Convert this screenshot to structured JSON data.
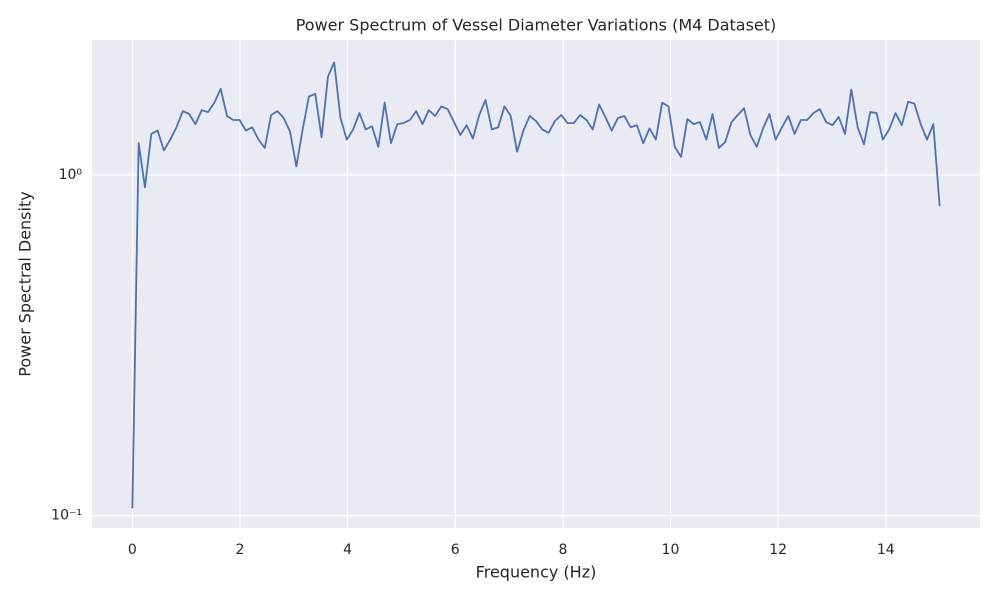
{
  "chart_data": {
    "type": "line",
    "title": "Power Spectrum of Vessel Diameter Variations (M4 Dataset)",
    "x_label": "Frequency (Hz)",
    "y_label": "Power Spectral Density",
    "yscale": "log",
    "grid": true,
    "xlim": [
      -0.75,
      15.75
    ],
    "ylim": [
      0.092,
      2.49
    ],
    "xticks": [
      0,
      2,
      4,
      6,
      8,
      10,
      12,
      14
    ],
    "yticks": [
      {
        "value": 0.1,
        "label": "10⁻¹"
      },
      {
        "value": 1,
        "label": "10⁰"
      }
    ],
    "x": [
      0,
      0.117,
      0.234,
      0.352,
      0.469,
      0.586,
      0.703,
      0.82,
      0.938,
      1.055,
      1.172,
      1.289,
      1.406,
      1.523,
      1.641,
      1.758,
      1.875,
      1.992,
      2.109,
      2.227,
      2.344,
      2.461,
      2.578,
      2.695,
      2.812,
      2.93,
      3.047,
      3.164,
      3.281,
      3.398,
      3.516,
      3.633,
      3.75,
      3.867,
      3.984,
      4.102,
      4.219,
      4.336,
      4.453,
      4.57,
      4.688,
      4.805,
      4.922,
      5.039,
      5.156,
      5.273,
      5.391,
      5.508,
      5.625,
      5.742,
      5.859,
      5.977,
      6.094,
      6.211,
      6.328,
      6.445,
      6.562,
      6.68,
      6.797,
      6.914,
      7.031,
      7.148,
      7.266,
      7.383,
      7.5,
      7.617,
      7.734,
      7.852,
      7.969,
      8.086,
      8.203,
      8.32,
      8.438,
      8.555,
      8.672,
      8.789,
      8.906,
      9.023,
      9.141,
      9.258,
      9.375,
      9.492,
      9.609,
      9.727,
      9.844,
      9.961,
      10.078,
      10.195,
      10.312,
      10.43,
      10.547,
      10.664,
      10.781,
      10.898,
      11.016,
      11.133,
      11.25,
      11.367,
      11.484,
      11.602,
      11.719,
      11.836,
      11.953,
      12.07,
      12.188,
      12.305,
      12.422,
      12.539,
      12.656,
      12.773,
      12.891,
      13.008,
      13.125,
      13.242,
      13.359,
      13.477,
      13.594,
      13.711,
      13.828,
      13.945,
      14.062,
      14.18,
      14.297,
      14.414,
      14.531,
      14.648,
      14.766,
      14.883,
      15.0
    ],
    "series": [
      {
        "color": "#4c72b0",
        "values": [
          0.105,
          1.24,
          0.92,
          1.32,
          1.35,
          1.18,
          1.27,
          1.38,
          1.54,
          1.51,
          1.41,
          1.55,
          1.53,
          1.63,
          1.79,
          1.49,
          1.45,
          1.45,
          1.35,
          1.38,
          1.27,
          1.2,
          1.5,
          1.54,
          1.47,
          1.34,
          1.06,
          1.36,
          1.7,
          1.73,
          1.29,
          1.94,
          2.14,
          1.47,
          1.27,
          1.36,
          1.52,
          1.36,
          1.39,
          1.21,
          1.63,
          1.24,
          1.41,
          1.42,
          1.45,
          1.54,
          1.41,
          1.55,
          1.49,
          1.59,
          1.56,
          1.43,
          1.31,
          1.4,
          1.28,
          1.5,
          1.66,
          1.36,
          1.38,
          1.59,
          1.49,
          1.17,
          1.35,
          1.49,
          1.44,
          1.36,
          1.33,
          1.44,
          1.5,
          1.42,
          1.42,
          1.5,
          1.45,
          1.36,
          1.61,
          1.48,
          1.35,
          1.47,
          1.49,
          1.38,
          1.4,
          1.24,
          1.37,
          1.27,
          1.63,
          1.59,
          1.21,
          1.13,
          1.46,
          1.41,
          1.43,
          1.27,
          1.51,
          1.2,
          1.25,
          1.43,
          1.5,
          1.57,
          1.31,
          1.21,
          1.37,
          1.51,
          1.27,
          1.38,
          1.49,
          1.32,
          1.45,
          1.45,
          1.52,
          1.56,
          1.43,
          1.4,
          1.48,
          1.32,
          1.78,
          1.38,
          1.23,
          1.53,
          1.52,
          1.27,
          1.36,
          1.52,
          1.4,
          1.64,
          1.62,
          1.41,
          1.27,
          1.41,
          0.81
        ]
      }
    ]
  }
}
